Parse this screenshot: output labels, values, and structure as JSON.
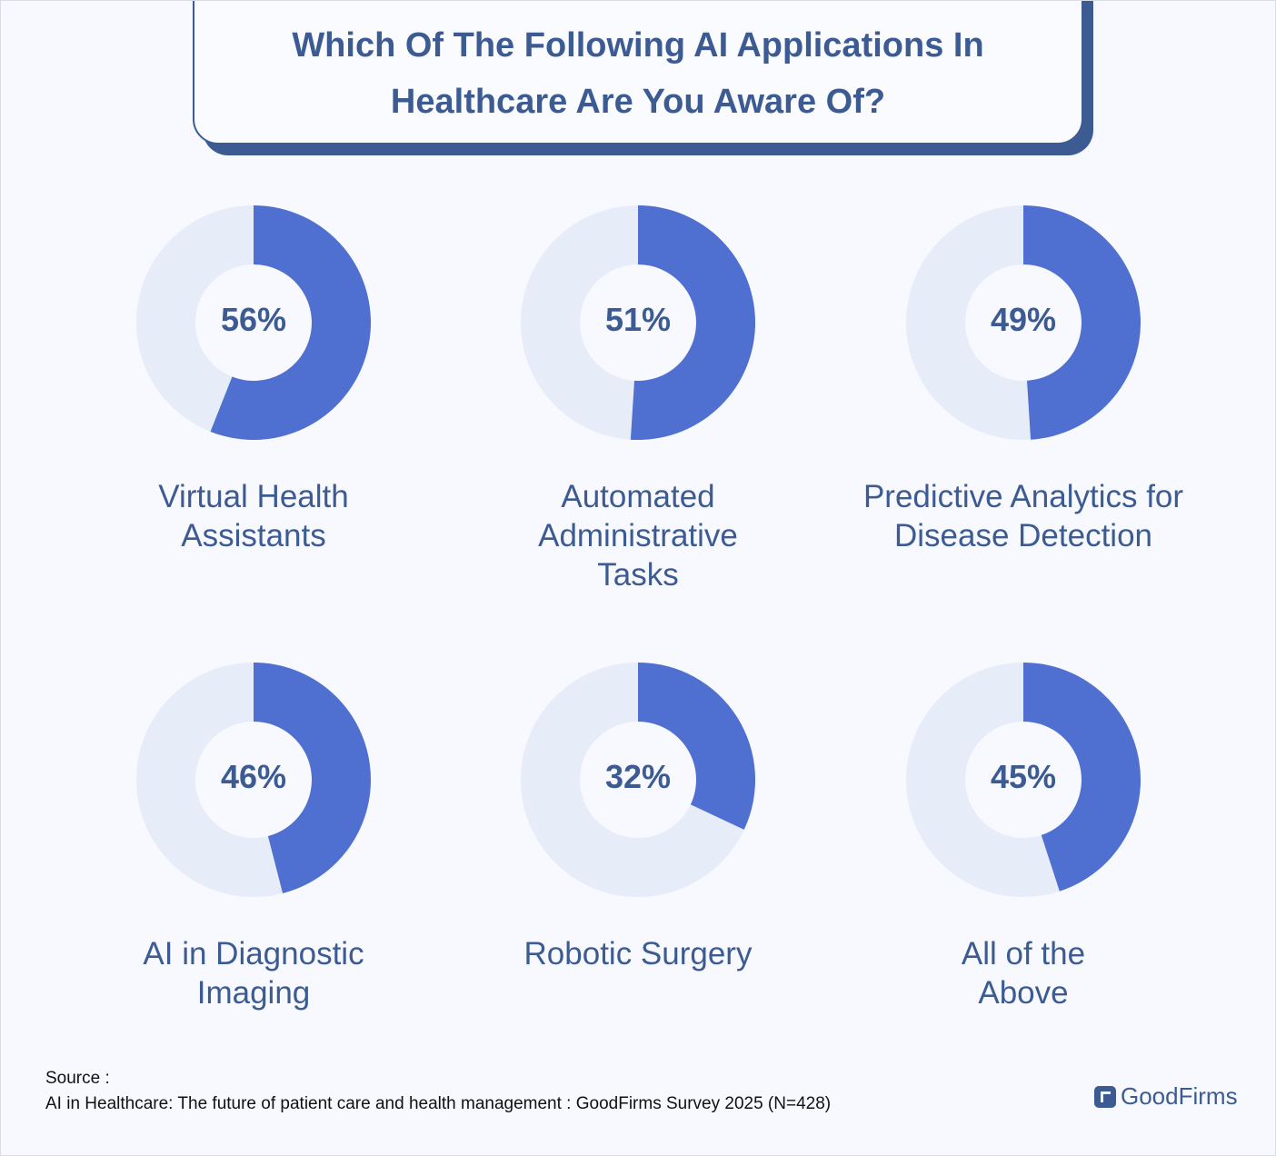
{
  "chart_data": {
    "type": "pie",
    "subtype": "donut-grid",
    "title": "Which Of The Following AI Applications In Healthcare Are You Aware Of?",
    "categories": [
      "Virtual Health Assistants",
      "Automated Administrative Tasks",
      "Predictive Analytics for Disease Detection",
      "AI in Diagnostic Imaging",
      "Robotic Surgery",
      "All of the Above"
    ],
    "values": [
      56,
      51,
      49,
      46,
      32,
      45
    ],
    "labels": [
      "56%",
      "51%",
      "49%",
      "46%",
      "32%",
      "45%"
    ],
    "unit": "%"
  },
  "colors": {
    "fill": "#4f6fd1",
    "track": "#e7ecf9",
    "text": "#3d5b93"
  },
  "source": {
    "label": "Source :",
    "text": "AI in Healthcare: The future of patient care and health management : GoodFirms Survey 2025 (N=428)"
  },
  "logo": "GoodFirms"
}
